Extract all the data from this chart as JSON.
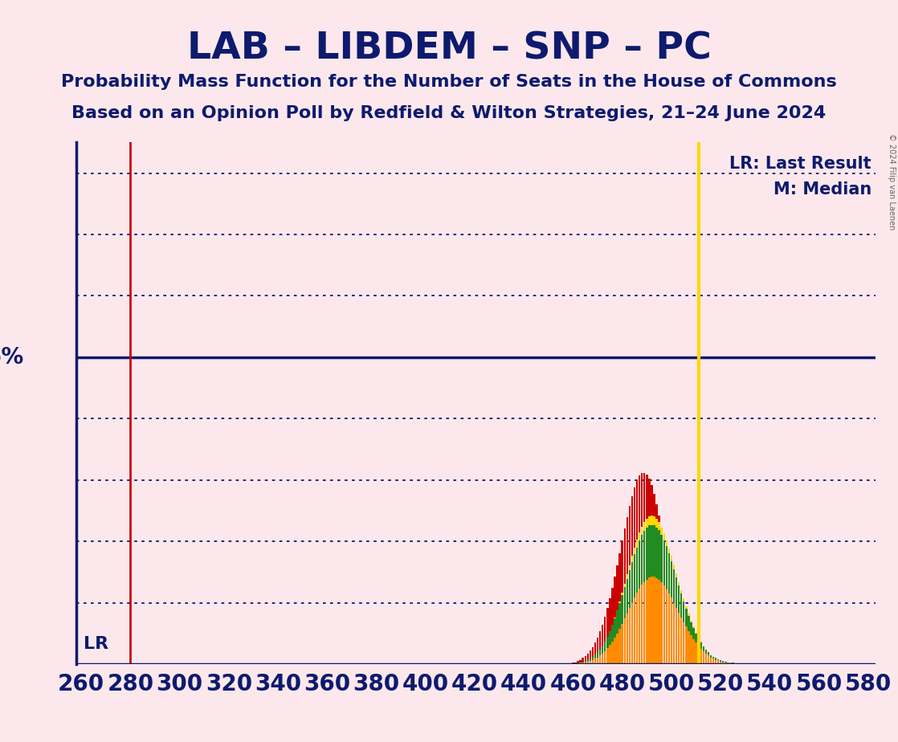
{
  "title": "LAB – LIBDEM – SNP – PC",
  "subtitle1": "Probability Mass Function for the Number of Seats in the House of Commons",
  "subtitle2": "Based on an Opinion Poll by Redfield & Wilton Strategies, 21–24 June 2024",
  "copyright": "© 2024 Filip van Laenen",
  "background_color": "#fce8ec",
  "title_color": "#0d1a6e",
  "bar_colors": [
    "#cc0000",
    "#ffd700",
    "#228b22",
    "#ff8c00"
  ],
  "lr_line_color": "#cc0000",
  "median_line_color": "#ffd700",
  "five_pct_line_color": "#0d1a6e",
  "grid_color": "#0d1a6e",
  "axis_color": "#0d1a6e",
  "lr_seat": 280,
  "median_seat": 511,
  "five_pct_value": 0.05,
  "x_min": 258,
  "x_max": 583,
  "y_min": 0,
  "y_max": 0.085,
  "grid_y_values": [
    0.01,
    0.02,
    0.03,
    0.04,
    0.06,
    0.07,
    0.08
  ],
  "pmf_seats": [
    460,
    461,
    462,
    463,
    464,
    465,
    466,
    467,
    468,
    469,
    470,
    471,
    472,
    473,
    474,
    475,
    476,
    477,
    478,
    479,
    480,
    481,
    482,
    483,
    484,
    485,
    486,
    487,
    488,
    489,
    490,
    491,
    492,
    493,
    494,
    495,
    496,
    497,
    498,
    499,
    500,
    501,
    502,
    503,
    504,
    505,
    506,
    507,
    508,
    509,
    510,
    511,
    512,
    513,
    514,
    515,
    516,
    517,
    518,
    519,
    520,
    521,
    522,
    523,
    524,
    525,
    526,
    527,
    528,
    529,
    530,
    531,
    532,
    533,
    534,
    535,
    536,
    537,
    538,
    539,
    540,
    541,
    542,
    543,
    544,
    545,
    546,
    547,
    548
  ],
  "pmf_LAB": [
    0.0002,
    0.0003,
    0.0005,
    0.0007,
    0.001,
    0.0013,
    0.0017,
    0.0022,
    0.0028,
    0.0035,
    0.0043,
    0.0053,
    0.0064,
    0.0077,
    0.0091,
    0.0107,
    0.0124,
    0.0142,
    0.0161,
    0.0181,
    0.0201,
    0.0221,
    0.024,
    0.0258,
    0.0274,
    0.0288,
    0.0299,
    0.0307,
    0.0311,
    0.0312,
    0.0309,
    0.0302,
    0.0292,
    0.0278,
    0.0261,
    0.0242,
    0.0222,
    0.02,
    0.0178,
    0.0156,
    0.0134,
    0.0114,
    0.0095,
    0.0078,
    0.0063,
    0.0051,
    0.004,
    0.0031,
    0.0024,
    0.0018,
    0.0014,
    0.001,
    0.0007,
    0.0005,
    0.0004,
    0.0003,
    0.0002,
    0.0002,
    0.0001,
    0.0001,
    0.0001,
    0.0001,
    0.0001,
    0.0,
    0.0,
    0.0,
    0.0,
    0.0,
    0.0,
    0.0,
    0.0,
    0.0,
    0.0,
    0.0,
    0.0,
    0.0,
    0.0,
    0.0,
    0.0,
    0.0,
    0.0,
    0.0,
    0.0,
    0.0,
    0.0,
    0.0,
    0.0,
    0.0,
    0.0
  ],
  "pmf_LIBDEM": [
    0.0001,
    0.0001,
    0.0002,
    0.0002,
    0.0003,
    0.0004,
    0.0006,
    0.0008,
    0.0011,
    0.0014,
    0.0018,
    0.0023,
    0.0029,
    0.0036,
    0.0044,
    0.0054,
    0.0064,
    0.0076,
    0.0088,
    0.0102,
    0.0116,
    0.0131,
    0.0146,
    0.0161,
    0.0176,
    0.019,
    0.0203,
    0.0214,
    0.0224,
    0.0232,
    0.0237,
    0.0241,
    0.0242,
    0.0241,
    0.0237,
    0.0231,
    0.0223,
    0.0213,
    0.0202,
    0.0189,
    0.0176,
    0.0162,
    0.0148,
    0.0134,
    0.012,
    0.0107,
    0.0094,
    0.0082,
    0.0071,
    0.0061,
    0.0051,
    0.0043,
    0.0036,
    0.0029,
    0.0024,
    0.0019,
    0.0015,
    0.0012,
    0.0009,
    0.0007,
    0.0006,
    0.0004,
    0.0003,
    0.0003,
    0.0002,
    0.0002,
    0.0001,
    0.0001,
    0.0001,
    0.0001,
    0.0,
    0.0,
    0.0,
    0.0,
    0.0,
    0.0,
    0.0,
    0.0,
    0.0,
    0.0,
    0.0,
    0.0,
    0.0,
    0.0,
    0.0,
    0.0,
    0.0,
    0.0,
    0.0
  ],
  "pmf_SNP": [
    0.0001,
    0.0001,
    0.0002,
    0.0003,
    0.0004,
    0.0005,
    0.0007,
    0.0009,
    0.0012,
    0.0015,
    0.0019,
    0.0024,
    0.003,
    0.0037,
    0.0045,
    0.0054,
    0.0064,
    0.0075,
    0.0087,
    0.0099,
    0.0112,
    0.0126,
    0.0139,
    0.0153,
    0.0166,
    0.0179,
    0.019,
    0.0201,
    0.021,
    0.0217,
    0.0222,
    0.0226,
    0.0227,
    0.0226,
    0.0223,
    0.0218,
    0.0211,
    0.0202,
    0.0192,
    0.0181,
    0.0168,
    0.0155,
    0.0141,
    0.0128,
    0.0115,
    0.0102,
    0.009,
    0.0079,
    0.0068,
    0.0059,
    0.005,
    0.0042,
    0.0035,
    0.0029,
    0.0024,
    0.0019,
    0.0015,
    0.0012,
    0.001,
    0.0008,
    0.0006,
    0.0005,
    0.0004,
    0.0003,
    0.0002,
    0.0002,
    0.0001,
    0.0001,
    0.0001,
    0.0001,
    0.0,
    0.0,
    0.0,
    0.0,
    0.0,
    0.0,
    0.0,
    0.0,
    0.0,
    0.0,
    0.0,
    0.0,
    0.0,
    0.0,
    0.0,
    0.0,
    0.0,
    0.0,
    0.0
  ],
  "pmf_PC": [
    0.0001,
    0.0001,
    0.0001,
    0.0002,
    0.0002,
    0.0003,
    0.0004,
    0.0005,
    0.0007,
    0.0009,
    0.0011,
    0.0014,
    0.0017,
    0.0021,
    0.0026,
    0.0031,
    0.0037,
    0.0043,
    0.005,
    0.0058,
    0.0066,
    0.0075,
    0.0083,
    0.0092,
    0.01,
    0.0108,
    0.0116,
    0.0123,
    0.0129,
    0.0134,
    0.0138,
    0.0141,
    0.0142,
    0.0142,
    0.014,
    0.0137,
    0.0133,
    0.0128,
    0.0122,
    0.0115,
    0.0108,
    0.01,
    0.0092,
    0.0084,
    0.0076,
    0.0068,
    0.0061,
    0.0054,
    0.0047,
    0.0041,
    0.0035,
    0.003,
    0.0025,
    0.0021,
    0.0017,
    0.0014,
    0.0011,
    0.0009,
    0.0007,
    0.0006,
    0.0004,
    0.0003,
    0.0003,
    0.0002,
    0.0002,
    0.0001,
    0.0001,
    0.0001,
    0.0001,
    0.0,
    0.0,
    0.0,
    0.0,
    0.0,
    0.0,
    0.0,
    0.0,
    0.0,
    0.0,
    0.0,
    0.0,
    0.0,
    0.0,
    0.0,
    0.0,
    0.0,
    0.0,
    0.0,
    0.0
  ]
}
